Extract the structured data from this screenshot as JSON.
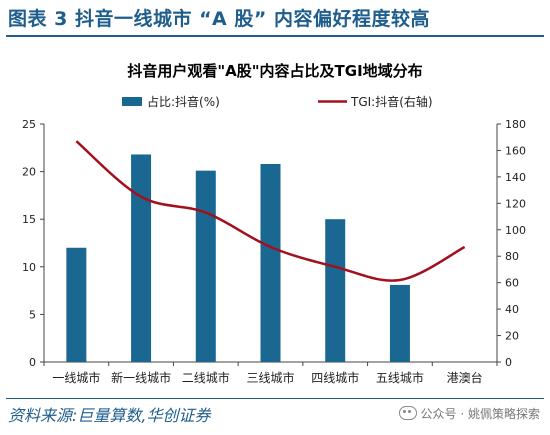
{
  "figure": {
    "title": "图表 3   抖音一线城市 “A 股” 内容偏好程度较高",
    "source": "资料来源:巨量算数,华创证券",
    "watermark": "公众号 · 姚佩策略探索"
  },
  "colors": {
    "heading": "#1f5e8c",
    "bar": "#1a6792",
    "line": "#a3101d"
  },
  "chart_data": {
    "type": "bar",
    "title": "抖音用户观看\"A股\"内容占比及TGI地域分布",
    "categories": [
      "一线城市",
      "新一线城市",
      "二线城市",
      "三线城市",
      "四线城市",
      "五线城市",
      "港澳台"
    ],
    "series": [
      {
        "name": "占比:抖音(%)",
        "type": "bar",
        "axis": "left",
        "values": [
          12.0,
          21.8,
          20.1,
          20.8,
          15.0,
          8.1,
          null
        ]
      },
      {
        "name": "TGI:抖音(右轴)",
        "type": "line",
        "axis": "right",
        "values": [
          167,
          125,
          113,
          87,
          72,
          62,
          87
        ]
      }
    ],
    "y_left": {
      "min": 0,
      "max": 25,
      "ticks": [
        0,
        5,
        10,
        15,
        20,
        25
      ]
    },
    "y_right": {
      "min": 0,
      "max": 180,
      "ticks": [
        0,
        20,
        40,
        60,
        80,
        100,
        120,
        140,
        160,
        180
      ]
    },
    "legend_position": "top",
    "grid": false
  }
}
